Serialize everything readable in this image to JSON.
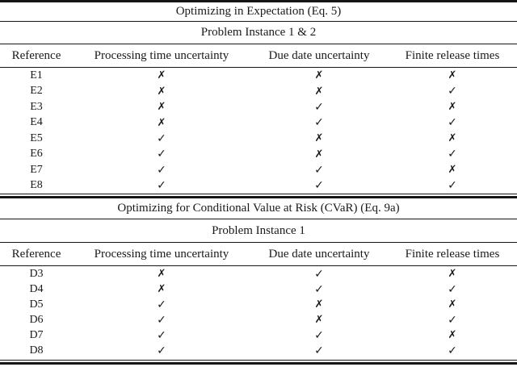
{
  "table": {
    "columns": [
      "Reference",
      "Processing time uncertainty",
      "Due date uncertainty",
      "Finite release times"
    ],
    "sections": [
      {
        "title": "Optimizing in Expectation (Eq. 5)",
        "subtitle": "Problem Instance 1 & 2",
        "rows": [
          {
            "ref": "E1",
            "marks": [
              "✗",
              "✗",
              "✗"
            ]
          },
          {
            "ref": "E2",
            "marks": [
              "✗",
              "✗",
              "✓"
            ]
          },
          {
            "ref": "E3",
            "marks": [
              "✗",
              "✓",
              "✗"
            ]
          },
          {
            "ref": "E4",
            "marks": [
              "✗",
              "✓",
              "✓"
            ]
          },
          {
            "ref": "E5",
            "marks": [
              "✓",
              "✗",
              "✗"
            ]
          },
          {
            "ref": "E6",
            "marks": [
              "✓",
              "✗",
              "✓"
            ]
          },
          {
            "ref": "E7",
            "marks": [
              "✓",
              "✓",
              "✗"
            ]
          },
          {
            "ref": "E8",
            "marks": [
              "✓",
              "✓",
              "✓"
            ]
          }
        ]
      },
      {
        "title": "Optimizing for Conditional Value at Risk (CVaR) (Eq. 9a)",
        "subtitle": "Problem Instance 1",
        "rows": [
          {
            "ref": "D3",
            "marks": [
              "✗",
              "✓",
              "✗"
            ]
          },
          {
            "ref": "D4",
            "marks": [
              "✗",
              "✓",
              "✓"
            ]
          },
          {
            "ref": "D5",
            "marks": [
              "✓",
              "✗",
              "✗"
            ]
          },
          {
            "ref": "D6",
            "marks": [
              "✓",
              "✗",
              "✓"
            ]
          },
          {
            "ref": "D7",
            "marks": [
              "✓",
              "✓",
              "✗"
            ]
          },
          {
            "ref": "D8",
            "marks": [
              "✓",
              "✓",
              "✓"
            ]
          }
        ]
      }
    ],
    "colors": {
      "text": "#1a1a1a",
      "background": "#ffffff",
      "rule": "#151515"
    }
  }
}
